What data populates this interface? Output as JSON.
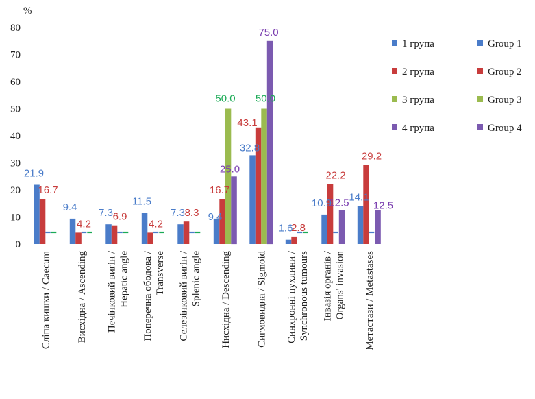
{
  "chart_data": {
    "type": "bar",
    "ylabel": "%",
    "ylim": [
      0,
      80
    ],
    "yticks": [
      0,
      10,
      20,
      30,
      40,
      50,
      60,
      70,
      80
    ],
    "grid": false,
    "legend_position": "right",
    "categories": [
      "Сліпа кишки / Caecum",
      "Висхідна / Ascending",
      "Печінковий вигін / Hepatic angle",
      "Поперечна ободова / Transverse",
      "Селезінковий вигін / Splenic angle",
      "Нисхідна / Descending",
      "Сигмовидна / Sigmoid",
      "Синхронні пухлини / Synchronous tumours",
      "Інвазія органів / Organs' invasion",
      "Метастази / Metastases"
    ],
    "category_lines": [
      [
        "Сліпа кишки / Caecum"
      ],
      [
        "Висхідна / Ascending"
      ],
      [
        "Печінковий вигін /",
        "Hepatic angle"
      ],
      [
        "Поперечна ободова /",
        "Transverse"
      ],
      [
        "Селезінковий вигін /",
        "Splenic angle"
      ],
      [
        "Нисхідна / Descending"
      ],
      [
        "Сигмовидна / Sigmoid"
      ],
      [
        "Синхронні пухлини /",
        "Synchronous tumours"
      ],
      [
        "Інвазія органів /",
        "Organs' invasion"
      ],
      [
        "Метастази / Metastases"
      ]
    ],
    "series": [
      {
        "name": "1 група",
        "name_en": "Group 1",
        "color": "#4a7cc9",
        "values": [
          21.9,
          9.4,
          7.3,
          11.5,
          7.3,
          9.4,
          32.8,
          1.6,
          10.9,
          14.1
        ],
        "labels": [
          "21.9",
          "9.4",
          "7.3",
          "11.5",
          "7.3",
          "9.4",
          "32.8",
          "1.6",
          "10.9",
          "14.1"
        ]
      },
      {
        "name": "2 група",
        "name_en": "Group 2",
        "color": "#c83c3c",
        "values": [
          16.7,
          4.2,
          6.9,
          4.2,
          8.3,
          16.7,
          43.1,
          2.8,
          22.2,
          29.2
        ],
        "labels": [
          "16.7",
          "4.2",
          "6.9",
          "4.2",
          "8.3",
          "16.7",
          "43.1",
          "2.8",
          "22.2",
          "29.2"
        ]
      },
      {
        "name": "3 група",
        "name_en": "Group 3",
        "color": "#9bbb4f",
        "values": [
          0,
          0,
          0,
          0,
          0,
          50.0,
          50.0,
          0,
          0,
          0
        ],
        "labels": [
          "",
          "",
          "",
          "",
          "",
          "50.0",
          "50.0",
          "",
          "",
          ""
        ]
      },
      {
        "name": "4 група",
        "name_en": "Group 4",
        "color": "#7b5ab0",
        "values": [
          0,
          0,
          0,
          0,
          0,
          25.0,
          75.0,
          0,
          12.5,
          12.5
        ],
        "labels": [
          "",
          "",
          "",
          "",
          "",
          "25.0",
          "75.0",
          "",
          "12.5",
          "12.5"
        ]
      }
    ],
    "value_label_colors": [
      "#4a7cc9",
      "#c83c3c",
      "#1aaa55",
      "#7b3fb0"
    ],
    "zero_marker_colors": [
      "#4a7cc9",
      "#1aaa55"
    ]
  }
}
